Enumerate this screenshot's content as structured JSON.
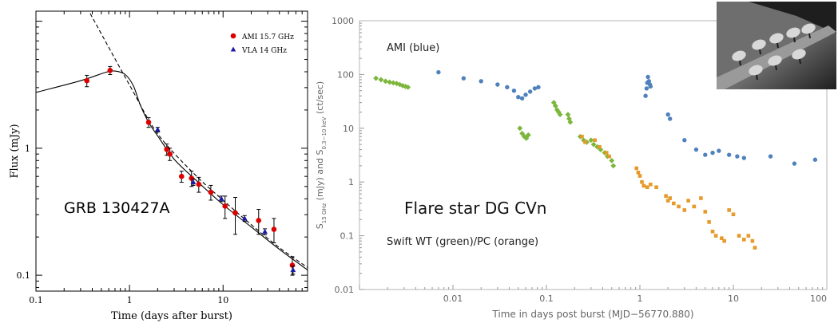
{
  "chart_data": [
    {
      "type": "scatter",
      "title": "",
      "annotation": "GRB 130427A",
      "xlabel": "Time (days after burst)",
      "ylabel": "Flux (mJy)",
      "xscale": "log",
      "yscale": "log",
      "xlim": [
        0.1,
        80
      ],
      "ylim": [
        0.075,
        12
      ],
      "xticks": [
        0.1,
        1,
        10
      ],
      "xtick_labels": [
        "0.1",
        "1",
        "10"
      ],
      "yticks": [
        0.1,
        1
      ],
      "ytick_labels": [
        "0.1",
        "1"
      ],
      "grid": false,
      "legend_position": "top-right",
      "series": [
        {
          "name": "AMI 15.7 GHz",
          "color": "#dd0000",
          "marker": "circle",
          "x": [
            0.35,
            0.62,
            1.6,
            2.5,
            2.7,
            3.6,
            4.6,
            5.5,
            7.4,
            10.5,
            13.5,
            24,
            35,
            55
          ],
          "y": [
            3.4,
            4.1,
            1.6,
            0.98,
            0.9,
            0.6,
            0.58,
            0.52,
            0.45,
            0.35,
            0.31,
            0.27,
            0.23,
            0.12
          ],
          "yerr": [
            0.35,
            0.3,
            0.14,
            0.1,
            0.1,
            0.06,
            0.08,
            0.07,
            0.06,
            0.07,
            0.1,
            0.06,
            0.05,
            0.02
          ]
        },
        {
          "name": "VLA 14 GHz",
          "color": "#1a1aa8",
          "marker": "triangle",
          "x": [
            2.0,
            4.8,
            9.6,
            17,
            28,
            56
          ],
          "y": [
            1.4,
            0.54,
            0.4,
            0.28,
            0.22,
            0.11
          ],
          "yerr": [
            0.06,
            0.03,
            0.02,
            0.015,
            0.012,
            0.008
          ]
        }
      ],
      "model_curves": [
        {
          "style": "solid",
          "x": [
            0.1,
            0.3,
            0.55,
            0.7,
            0.9,
            1.1,
            1.3,
            1.6,
            2,
            3,
            5,
            10,
            20,
            40,
            80
          ],
          "y": [
            2.75,
            3.4,
            3.95,
            4.05,
            3.8,
            3.1,
            2.2,
            1.6,
            1.25,
            0.82,
            0.57,
            0.36,
            0.24,
            0.16,
            0.11
          ]
        },
        {
          "style": "dashed",
          "x": [
            0.38,
            1,
            2,
            5,
            10,
            20,
            40,
            80
          ],
          "y": [
            11.5,
            3.15,
            1.3,
            0.62,
            0.39,
            0.25,
            0.165,
            0.115
          ]
        }
      ]
    },
    {
      "type": "scatter",
      "title": "",
      "annotations": [
        "AMI (blue)",
        "Flare star DG CVn",
        "Swift WT (green)/PC (orange)"
      ],
      "xlabel": "Time in days post burst (MJD−56770.880)",
      "ylabel": "S15 GHz (mJy) and S0.3−10 keV (ct/sec)",
      "xscale": "log",
      "yscale": "log",
      "xlim": [
        0.001,
        100
      ],
      "ylim": [
        0.01,
        1000
      ],
      "xticks": [
        0.01,
        0.1,
        1,
        10,
        100
      ],
      "xtick_labels": [
        "0.01",
        "0.1",
        "1",
        "10",
        "100"
      ],
      "yticks": [
        0.01,
        0.1,
        1,
        10,
        100,
        1000
      ],
      "ytick_labels": [
        "0.01",
        "0.1",
        "1",
        "10",
        "100",
        "1000"
      ],
      "grid": false,
      "series": [
        {
          "color": "#4f81bd",
          "marker": "circle",
          "x": [
            0.007,
            0.013,
            0.02,
            0.03,
            0.038,
            0.045,
            0.05,
            0.055,
            0.06,
            0.067,
            0.075,
            0.082,
            1.15,
            1.18,
            1.2,
            1.22,
            1.25,
            1.28,
            1.3,
            2.0,
            2.1,
            3.0,
            4.0,
            5.0,
            6.0,
            7.0,
            9.0,
            11.0,
            13.0,
            25.0,
            45.0,
            75.0
          ],
          "y": [
            110,
            85,
            75,
            65,
            58,
            50,
            38,
            36,
            42,
            48,
            55,
            58,
            40,
            55,
            70,
            90,
            75,
            65,
            60,
            18,
            15,
            6,
            4,
            3.2,
            3.5,
            3.8,
            3.2,
            3.0,
            2.8,
            3.0,
            2.2,
            2.6
          ]
        },
        {
          "color": "#7cb63b",
          "marker": "diamond",
          "x": [
            0.0015,
            0.0017,
            0.0019,
            0.0021,
            0.0023,
            0.0025,
            0.0027,
            0.0029,
            0.0031,
            0.0033,
            0.052,
            0.055,
            0.058,
            0.061,
            0.064,
            0.12,
            0.125,
            0.13,
            0.135,
            0.14,
            0.17,
            0.175,
            0.18,
            0.23,
            0.25,
            0.27,
            0.3,
            0.32,
            0.35,
            0.38,
            0.42,
            0.45,
            0.5,
            0.52
          ],
          "y": [
            85,
            80,
            75,
            72,
            70,
            68,
            65,
            62,
            60,
            58,
            10,
            8,
            7,
            6.5,
            7.5,
            30,
            26,
            22,
            20,
            18,
            18,
            15,
            13,
            7,
            6,
            5.5,
            6,
            5,
            4.5,
            4,
            3.5,
            3,
            2.5,
            2
          ]
        },
        {
          "color": "#e59a2a",
          "marker": "square",
          "x": [
            0.24,
            0.26,
            0.33,
            0.37,
            0.44,
            0.47,
            0.92,
            0.96,
            1.0,
            1.05,
            1.1,
            1.2,
            1.3,
            1.5,
            1.9,
            2.0,
            2.1,
            2.3,
            2.6,
            3.0,
            3.3,
            3.8,
            4.5,
            5.0,
            5.5,
            6.0,
            6.5,
            7.5,
            8.0,
            9.0,
            10.0,
            11.5,
            13.0,
            14.5,
            16.0,
            17.0
          ],
          "y": [
            7,
            5.5,
            6,
            4.5,
            3.5,
            3,
            1.8,
            1.5,
            1.3,
            1.0,
            0.85,
            0.8,
            0.9,
            0.8,
            0.55,
            0.45,
            0.5,
            0.4,
            0.35,
            0.3,
            0.45,
            0.35,
            0.5,
            0.28,
            0.18,
            0.12,
            0.1,
            0.09,
            0.08,
            0.3,
            0.25,
            0.1,
            0.085,
            0.1,
            0.08,
            0.06
          ]
        }
      ],
      "photo": {
        "name": "radio telescope array photo",
        "tones": [
          "#1e1e1e",
          "#6e6e6e",
          "#d8d8d8"
        ]
      }
    }
  ]
}
